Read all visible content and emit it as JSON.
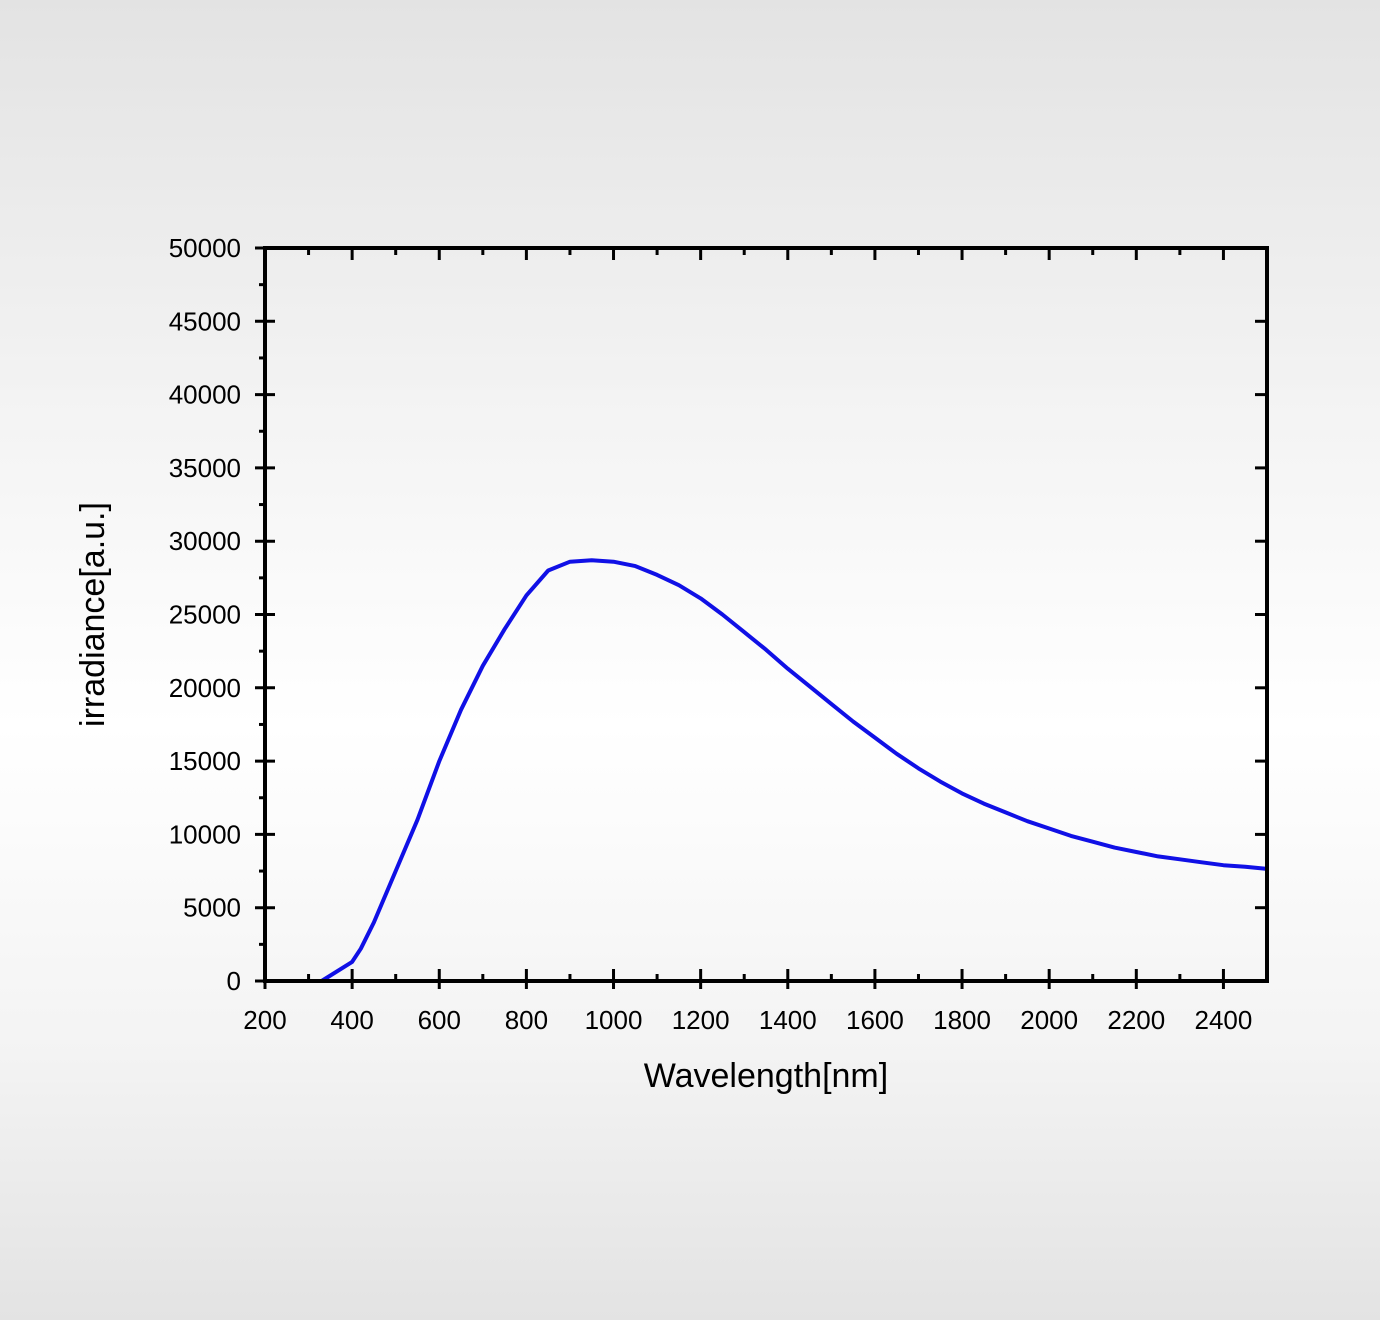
{
  "chart_data": {
    "type": "line",
    "title": "",
    "xlabel": "Wavelength[nm]",
    "ylabel": "irradiance[a.u.]",
    "xlim": [
      200,
      2500
    ],
    "ylim": [
      0,
      50000
    ],
    "x_ticks": [
      200,
      400,
      600,
      800,
      1000,
      1200,
      1400,
      1600,
      1800,
      2000,
      2200,
      2400
    ],
    "y_ticks": [
      0,
      5000,
      10000,
      15000,
      20000,
      25000,
      30000,
      35000,
      40000,
      45000,
      50000
    ],
    "x_tick_labels": [
      "200",
      "400",
      "600",
      "800",
      "1000",
      "1200",
      "1400",
      "1600",
      "1800",
      "2000",
      "2200",
      "2400"
    ],
    "y_tick_labels": [
      "0",
      "5000",
      "10000",
      "15000",
      "20000",
      "25000",
      "30000",
      "35000",
      "40000",
      "45000",
      "50000"
    ],
    "grid": false,
    "legend": "none",
    "line_color": "#1010e6",
    "series": [
      {
        "x": [
          200,
          300,
          330,
          400,
          420,
          450,
          500,
          550,
          600,
          650,
          700,
          750,
          800,
          850,
          900,
          950,
          1000,
          1050,
          1100,
          1150,
          1200,
          1250,
          1300,
          1350,
          1400,
          1450,
          1500,
          1550,
          1600,
          1650,
          1700,
          1750,
          1800,
          1850,
          1900,
          1950,
          2000,
          2050,
          2100,
          2150,
          2200,
          2250,
          2300,
          2350,
          2400,
          2450,
          2500
        ],
        "y": [
          0,
          0,
          0,
          1300,
          2200,
          4000,
          7500,
          11000,
          15000,
          18500,
          21500,
          24000,
          26300,
          28000,
          28600,
          28700,
          28600,
          28300,
          27700,
          27000,
          26100,
          25000,
          23800,
          22600,
          21300,
          20100,
          18900,
          17700,
          16600,
          15500,
          14500,
          13600,
          12800,
          12100,
          11500,
          10900,
          10400,
          9900,
          9500,
          9100,
          8800,
          8500,
          8300,
          8100,
          7900,
          7800,
          7650
        ]
      }
    ]
  }
}
